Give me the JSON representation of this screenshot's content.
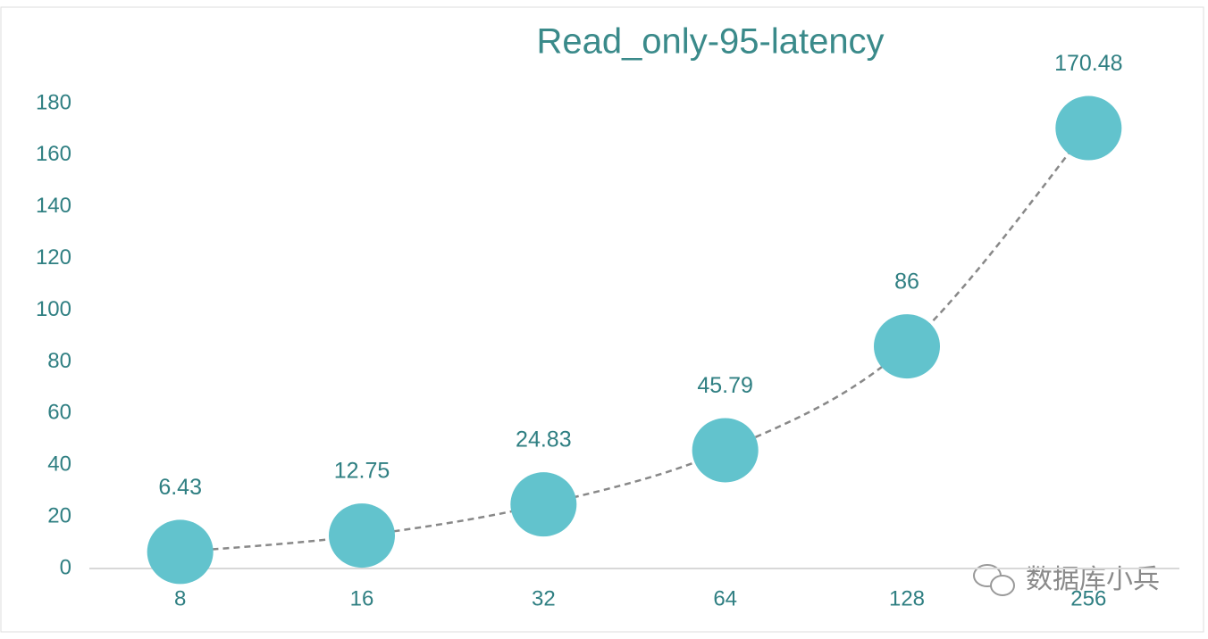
{
  "chart_data": {
    "type": "line",
    "title": "Read_only-95-latency",
    "categories": [
      "8",
      "16",
      "32",
      "64",
      "128",
      "256"
    ],
    "series": [
      {
        "name": "Read_only-95-latency",
        "color": "#62c3cd",
        "values": [
          6.43,
          12.75,
          24.83,
          45.79,
          86,
          170.48
        ]
      }
    ],
    "ylim": [
      0,
      180
    ],
    "yticks": [
      0,
      20,
      40,
      60,
      80,
      100,
      120,
      140,
      160,
      180
    ],
    "grid": false,
    "line_style": "dashed",
    "line_color": "#888888",
    "watermark": "数据库小兵"
  }
}
